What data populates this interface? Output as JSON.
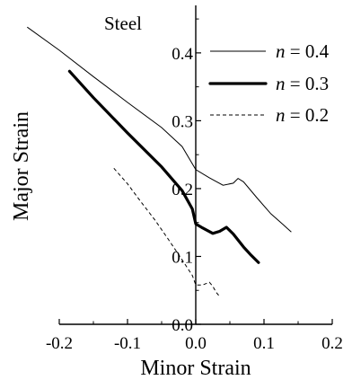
{
  "chart_data": {
    "type": "line",
    "title": "Steel",
    "xlabel": "Minor Strain",
    "ylabel": "Major Strain",
    "xlim": [
      -0.2,
      0.2
    ],
    "ylim": [
      0.0,
      0.47
    ],
    "x_ticks": [
      {
        "value": -0.2,
        "label": "-0.2"
      },
      {
        "value": -0.1,
        "label": "-0.1"
      },
      {
        "value": 0.0,
        "label": "0.0"
      },
      {
        "value": 0.1,
        "label": "0.1"
      },
      {
        "value": 0.2,
        "label": "0.2"
      }
    ],
    "y_ticks": [
      {
        "value": 0.0,
        "label": "0.0"
      },
      {
        "value": 0.1,
        "label": "0.1"
      },
      {
        "value": 0.2,
        "label": "0.2"
      },
      {
        "value": 0.3,
        "label": "0.3"
      },
      {
        "value": 0.4,
        "label": "0.4"
      }
    ],
    "grid": false,
    "legend_position": "top-right",
    "series": [
      {
        "name": "n = 0.4",
        "name_prefix": "n",
        "name_suffix": " = 0.4",
        "style": "thin",
        "points": [
          [
            -0.247,
            0.438
          ],
          [
            -0.2,
            0.404
          ],
          [
            -0.15,
            0.365
          ],
          [
            -0.1,
            0.327
          ],
          [
            -0.05,
            0.29
          ],
          [
            -0.02,
            0.262
          ],
          [
            0.0,
            0.228
          ],
          [
            0.02,
            0.216
          ],
          [
            0.04,
            0.205
          ],
          [
            0.055,
            0.208
          ],
          [
            0.062,
            0.215
          ],
          [
            0.07,
            0.21
          ],
          [
            0.09,
            0.186
          ],
          [
            0.11,
            0.163
          ],
          [
            0.128,
            0.147
          ],
          [
            0.14,
            0.136
          ]
        ]
      },
      {
        "name": "n = 0.3",
        "name_prefix": "n",
        "name_suffix": " = 0.3",
        "style": "thick",
        "points": [
          [
            -0.185,
            0.373
          ],
          [
            -0.15,
            0.334
          ],
          [
            -0.1,
            0.282
          ],
          [
            -0.05,
            0.232
          ],
          [
            -0.02,
            0.197
          ],
          [
            -0.005,
            0.17
          ],
          [
            0.0,
            0.148
          ],
          [
            0.01,
            0.142
          ],
          [
            0.025,
            0.134
          ],
          [
            0.035,
            0.137
          ],
          [
            0.045,
            0.143
          ],
          [
            0.055,
            0.133
          ],
          [
            0.07,
            0.114
          ],
          [
            0.08,
            0.103
          ],
          [
            0.092,
            0.091
          ]
        ]
      },
      {
        "name": "n = 0.2",
        "name_prefix": "n",
        "name_suffix": " = 0.2",
        "style": "dashed",
        "points": [
          [
            -0.12,
            0.23
          ],
          [
            -0.1,
            0.207
          ],
          [
            -0.08,
            0.18
          ],
          [
            -0.06,
            0.154
          ],
          [
            -0.04,
            0.125
          ],
          [
            -0.02,
            0.095
          ],
          [
            -0.005,
            0.072
          ],
          [
            0.0,
            0.058
          ],
          [
            0.01,
            0.058
          ],
          [
            0.02,
            0.062
          ],
          [
            0.025,
            0.056
          ],
          [
            0.03,
            0.047
          ],
          [
            0.035,
            0.041
          ]
        ]
      }
    ]
  }
}
